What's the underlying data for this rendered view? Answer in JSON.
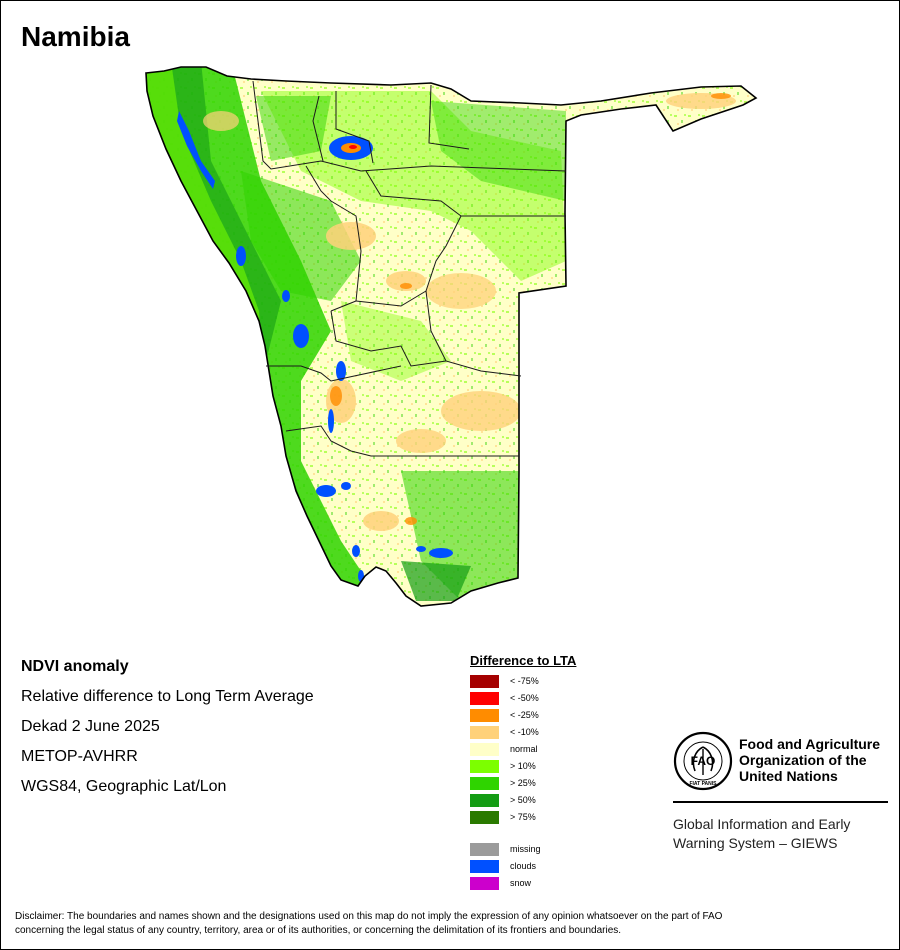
{
  "map": {
    "title": "Namibia"
  },
  "info": {
    "heading": "NDVI anomaly",
    "subtitle": "Relative difference to Long Term Average",
    "period": "Dekad 2 June 2025",
    "sensor": "METOP-AVHRR",
    "projection": "WGS84, Geographic Lat/Lon"
  },
  "legend": {
    "title": "Difference to LTA",
    "items": [
      {
        "label": "< -75%",
        "color": "#a50000"
      },
      {
        "label": "< -50%",
        "color": "#ff0000"
      },
      {
        "label": "< -25%",
        "color": "#ff8c00"
      },
      {
        "label": "< -10%",
        "color": "#ffd17a"
      },
      {
        "label": "normal",
        "color": "#ffffc8"
      },
      {
        "label": "> 10%",
        "color": "#7cff00"
      },
      {
        "label": "> 25%",
        "color": "#2fd400"
      },
      {
        "label": "> 50%",
        "color": "#149c14"
      },
      {
        "label": "> 75%",
        "color": "#2a7a00"
      }
    ],
    "extra_items": [
      {
        "label": "missing",
        "color": "#9b9b9b"
      },
      {
        "label": "clouds",
        "color": "#0050ff"
      },
      {
        "label": "snow",
        "color": "#cc00cc"
      }
    ]
  },
  "fao": {
    "logo_text": "FAO",
    "logo_motto": "FIAT PANIS",
    "org_line1": "Food and Agriculture",
    "org_line2": "Organization of the",
    "org_line3": "United Nations",
    "giews_line1": "Global Information and Early",
    "giews_line2": "Warning System – GIEWS"
  },
  "disclaimer": {
    "line1": "Disclaimer: The boundaries and names shown and the designations used on this map do not imply the expression of any opinion whatsoever on the part of FAO",
    "line2": "concerning the legal status of any country, territory, area or of its authorities, or concerning the delimitation of its frontiers and boundaries."
  }
}
